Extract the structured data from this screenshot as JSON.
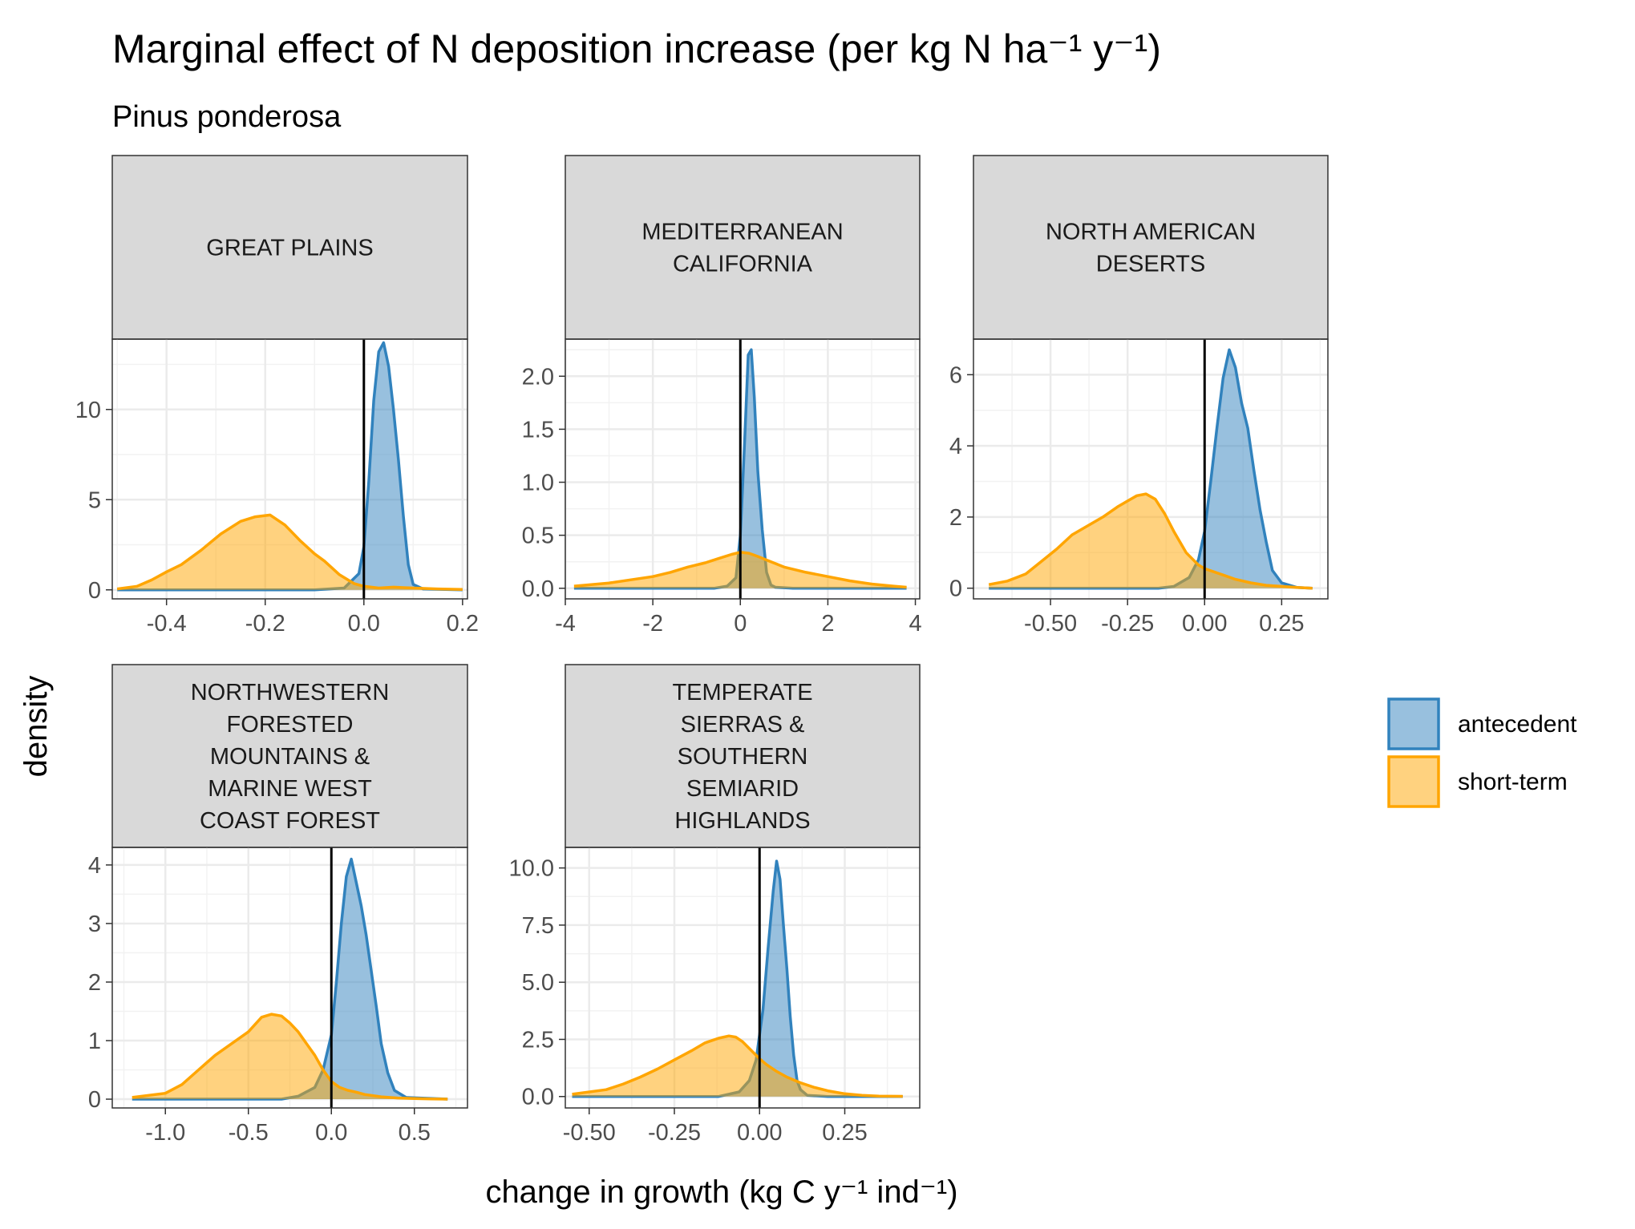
{
  "chart_data": {
    "type": "area",
    "title": "Marginal effect of N deposition increase (per kg N ha⁻¹ y⁻¹)",
    "subtitle": "Pinus ponderosa",
    "xlabel": "change in growth (kg C y⁻¹ ind⁻¹)",
    "ylabel": "density",
    "grid": true,
    "legend_position": "right",
    "legend": [
      {
        "name": "antecedent",
        "color": "#3182bd"
      },
      {
        "name": "short-term",
        "color": "#ffa500"
      }
    ],
    "vline_x": 0,
    "panels": [
      {
        "title": "GREAT PLAINS",
        "title_lines": [
          "GREAT PLAINS"
        ],
        "xlim": [
          -0.51,
          0.21
        ],
        "ylim": [
          -0.5,
          13.9
        ],
        "xticks": [
          -0.4,
          -0.2,
          0.0,
          0.2
        ],
        "xtick_labels": [
          "-0.4",
          "-0.2",
          "0.0",
          "0.2"
        ],
        "yticks": [
          0,
          5,
          10
        ],
        "ytick_labels": [
          "0",
          "5",
          "10"
        ],
        "series": [
          {
            "name": "antecedent",
            "x": [
              -0.5,
              -0.1,
              -0.04,
              -0.01,
              0.0,
              0.01,
              0.02,
              0.03,
              0.04,
              0.05,
              0.06,
              0.07,
              0.08,
              0.09,
              0.1,
              0.12,
              0.2
            ],
            "y": [
              0,
              0,
              0.1,
              0.9,
              2.4,
              6.0,
              10.5,
              13.2,
              13.7,
              12.4,
              10.0,
              7.2,
              4.1,
              1.4,
              0.3,
              0.05,
              0
            ]
          },
          {
            "name": "short-term",
            "x": [
              -0.5,
              -0.46,
              -0.43,
              -0.4,
              -0.37,
              -0.33,
              -0.29,
              -0.25,
              -0.22,
              -0.19,
              -0.16,
              -0.13,
              -0.1,
              -0.08,
              -0.05,
              -0.02,
              0.0,
              0.03,
              0.06,
              0.1,
              0.15,
              0.2
            ],
            "y": [
              0.05,
              0.2,
              0.55,
              1.0,
              1.4,
              2.2,
              3.1,
              3.8,
              4.05,
              4.15,
              3.6,
              2.75,
              2.0,
              1.6,
              0.85,
              0.35,
              0.2,
              0.1,
              0.15,
              0.1,
              0.05,
              0.02
            ]
          }
        ]
      },
      {
        "title": "MEDITERRANEAN CALIFORNIA",
        "title_lines": [
          "MEDITERRANEAN",
          "CALIFORNIA"
        ],
        "xlim": [
          -4.0,
          4.1
        ],
        "ylim": [
          -0.1,
          2.35
        ],
        "xticks": [
          -4,
          -2,
          0,
          2,
          4
        ],
        "xtick_labels": [
          "-4",
          "-2",
          "0",
          "2",
          "4"
        ],
        "yticks": [
          0.0,
          0.5,
          1.0,
          1.5,
          2.0
        ],
        "ytick_labels": [
          "0.0",
          "0.5",
          "1.0",
          "1.5",
          "2.0"
        ],
        "series": [
          {
            "name": "antecedent",
            "x": [
              -3.8,
              -0.6,
              -0.3,
              -0.1,
              0.0,
              0.1,
              0.18,
              0.25,
              0.32,
              0.4,
              0.5,
              0.6,
              0.7,
              0.8,
              1.2,
              3.8
            ],
            "y": [
              0,
              0,
              0.02,
              0.1,
              0.5,
              1.4,
              2.2,
              2.25,
              1.8,
              1.1,
              0.55,
              0.15,
              0.03,
              0.01,
              0,
              0
            ]
          },
          {
            "name": "short-term",
            "x": [
              -3.8,
              -3.0,
              -2.5,
              -2.0,
              -1.6,
              -1.2,
              -0.8,
              -0.5,
              -0.2,
              0.0,
              0.2,
              0.4,
              0.7,
              1.0,
              1.5,
              2.0,
              2.5,
              3.0,
              3.5,
              3.8
            ],
            "y": [
              0.02,
              0.05,
              0.08,
              0.11,
              0.15,
              0.2,
              0.24,
              0.28,
              0.32,
              0.34,
              0.33,
              0.3,
              0.25,
              0.2,
              0.15,
              0.11,
              0.07,
              0.04,
              0.02,
              0.01
            ]
          }
        ]
      },
      {
        "title": "NORTH AMERICAN DESERTS",
        "title_lines": [
          "NORTH AMERICAN",
          "DESERTS"
        ],
        "xlim": [
          -0.75,
          0.4
        ],
        "ylim": [
          -0.3,
          7.0
        ],
        "xticks": [
          -0.5,
          -0.25,
          0.0,
          0.25
        ],
        "xtick_labels": [
          "-0.50",
          "-0.25",
          "0.00",
          "0.25"
        ],
        "yticks": [
          0,
          2,
          4,
          6
        ],
        "ytick_labels": [
          "0",
          "2",
          "4",
          "6"
        ],
        "series": [
          {
            "name": "antecedent",
            "x": [
              -0.7,
              -0.15,
              -0.1,
              -0.05,
              -0.02,
              0.0,
              0.02,
              0.04,
              0.06,
              0.08,
              0.1,
              0.12,
              0.14,
              0.16,
              0.18,
              0.2,
              0.22,
              0.25,
              0.3,
              0.35
            ],
            "y": [
              0,
              0,
              0.05,
              0.3,
              0.8,
              1.6,
              3.0,
              4.5,
              5.9,
              6.7,
              6.2,
              5.2,
              4.5,
              3.3,
              2.2,
              1.3,
              0.5,
              0.15,
              0.02,
              0
            ]
          },
          {
            "name": "short-term",
            "x": [
              -0.7,
              -0.64,
              -0.58,
              -0.53,
              -0.48,
              -0.43,
              -0.38,
              -0.33,
              -0.28,
              -0.25,
              -0.22,
              -0.19,
              -0.16,
              -0.13,
              -0.1,
              -0.06,
              -0.02,
              0.0,
              0.05,
              0.1,
              0.15,
              0.2,
              0.3,
              0.35
            ],
            "y": [
              0.1,
              0.2,
              0.4,
              0.75,
              1.1,
              1.5,
              1.75,
              2.0,
              2.3,
              2.45,
              2.6,
              2.65,
              2.5,
              2.1,
              1.6,
              1.0,
              0.65,
              0.55,
              0.4,
              0.25,
              0.15,
              0.08,
              0.02,
              0
            ]
          }
        ]
      },
      {
        "title": "NORTHWESTERN FORESTED MOUNTAINS & MARINE WEST COAST FOREST",
        "title_lines": [
          "NORTHWESTERN",
          "FORESTED",
          "MOUNTAINS &",
          "MARINE WEST",
          "COAST FOREST"
        ],
        "xlim": [
          -1.32,
          0.82
        ],
        "ylim": [
          -0.15,
          4.3
        ],
        "xticks": [
          -1.0,
          -0.5,
          0.0,
          0.5
        ],
        "xtick_labels": [
          "-1.0",
          "-0.5",
          "0.0",
          "0.5"
        ],
        "yticks": [
          0,
          1,
          2,
          3,
          4
        ],
        "ytick_labels": [
          "0",
          "1",
          "2",
          "3",
          "4"
        ],
        "series": [
          {
            "name": "antecedent",
            "x": [
              -1.2,
              -0.3,
              -0.2,
              -0.1,
              -0.05,
              0.0,
              0.03,
              0.06,
              0.09,
              0.12,
              0.15,
              0.18,
              0.21,
              0.24,
              0.27,
              0.3,
              0.34,
              0.38,
              0.45,
              0.7
            ],
            "y": [
              0,
              0,
              0.05,
              0.2,
              0.5,
              1.1,
              2.0,
              3.0,
              3.8,
              4.1,
              3.7,
              3.3,
              2.8,
              2.2,
              1.6,
              0.95,
              0.45,
              0.15,
              0.03,
              0
            ]
          },
          {
            "name": "short-term",
            "x": [
              -1.2,
              -1.0,
              -0.9,
              -0.8,
              -0.7,
              -0.6,
              -0.5,
              -0.42,
              -0.36,
              -0.3,
              -0.25,
              -0.2,
              -0.15,
              -0.1,
              -0.05,
              0.0,
              0.05,
              0.1,
              0.15,
              0.2,
              0.3,
              0.4,
              0.5,
              0.6,
              0.7
            ],
            "y": [
              0.03,
              0.1,
              0.25,
              0.5,
              0.75,
              0.95,
              1.15,
              1.4,
              1.45,
              1.42,
              1.3,
              1.15,
              0.95,
              0.75,
              0.5,
              0.3,
              0.2,
              0.15,
              0.12,
              0.08,
              0.04,
              0.02,
              0.01,
              0.005,
              0
            ]
          }
        ]
      },
      {
        "title": "TEMPERATE SIERRAS & SOUTHERN SEMIARID HIGHLANDS",
        "title_lines": [
          "TEMPERATE",
          "SIERRAS &",
          "SOUTHERN",
          "SEMIARID",
          "HIGHLANDS"
        ],
        "xlim": [
          -0.57,
          0.47
        ],
        "ylim": [
          -0.5,
          10.9
        ],
        "xticks": [
          -0.5,
          -0.25,
          0.0,
          0.25
        ],
        "xtick_labels": [
          "-0.50",
          "-0.25",
          "0.00",
          "0.25"
        ],
        "yticks": [
          0.0,
          2.5,
          5.0,
          7.5,
          10.0
        ],
        "ytick_labels": [
          "0.0",
          "2.5",
          "5.0",
          "7.5",
          "10.0"
        ],
        "series": [
          {
            "name": "antecedent",
            "x": [
              -0.55,
              -0.12,
              -0.06,
              -0.03,
              -0.01,
              0.01,
              0.025,
              0.04,
              0.05,
              0.06,
              0.07,
              0.08,
              0.09,
              0.1,
              0.11,
              0.12,
              0.14,
              0.2,
              0.42
            ],
            "y": [
              0,
              0,
              0.2,
              0.7,
              1.6,
              3.8,
              6.5,
              9.0,
              10.3,
              9.5,
              7.5,
              5.6,
              3.5,
              1.8,
              0.7,
              0.3,
              0.05,
              0,
              0
            ]
          },
          {
            "name": "short-term",
            "x": [
              -0.55,
              -0.45,
              -0.4,
              -0.35,
              -0.3,
              -0.25,
              -0.2,
              -0.16,
              -0.12,
              -0.09,
              -0.07,
              -0.05,
              -0.03,
              -0.01,
              0.0,
              0.02,
              0.05,
              0.08,
              0.12,
              0.16,
              0.2,
              0.25,
              0.3,
              0.35,
              0.42
            ],
            "y": [
              0.1,
              0.3,
              0.55,
              0.85,
              1.2,
              1.6,
              2.0,
              2.35,
              2.55,
              2.65,
              2.6,
              2.4,
              2.1,
              1.8,
              1.65,
              1.4,
              1.1,
              0.85,
              0.6,
              0.4,
              0.25,
              0.12,
              0.05,
              0.02,
              0.01
            ]
          }
        ]
      }
    ]
  }
}
